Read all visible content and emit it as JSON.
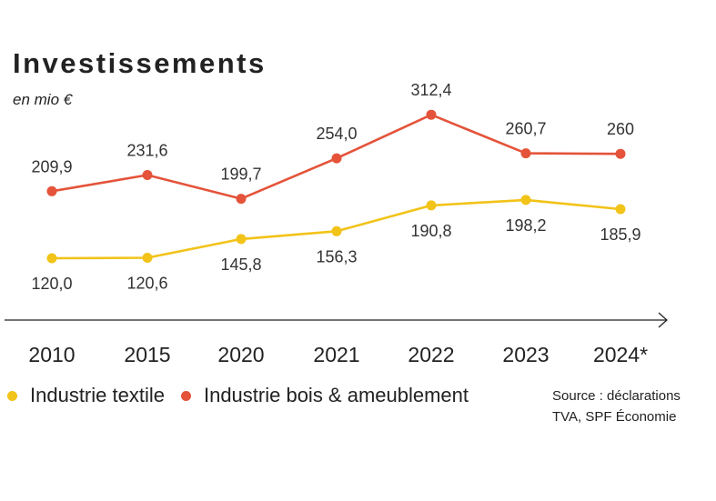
{
  "title": "Investissements",
  "subtitle": "en mio €",
  "legend": {
    "textile": "Industrie textile",
    "bois": "Industrie bois & ameublement"
  },
  "source": {
    "line1": "Source : déclarations",
    "line2": "TVA, SPF Économie"
  },
  "colors": {
    "textile": "#f2c318",
    "bois": "#e4533a",
    "axis": "#222222"
  },
  "chart_data": {
    "type": "line",
    "categories": [
      "2010",
      "2015",
      "2020",
      "2021",
      "2022",
      "2023",
      "2024*"
    ],
    "series": [
      {
        "name": "Industrie bois & ameublement",
        "key": "bois",
        "values": [
          209.9,
          231.6,
          199.7,
          254.0,
          312.4,
          260.7,
          260
        ],
        "labels": [
          "209,9",
          "231,6",
          "199,7",
          "254,0",
          "312,4",
          "260,7",
          "260"
        ],
        "label_position": "above"
      },
      {
        "name": "Industrie textile",
        "key": "textile",
        "values": [
          120.0,
          120.6,
          145.8,
          156.3,
          190.8,
          198.2,
          185.9
        ],
        "labels": [
          "120,0",
          "120,6",
          "145,8",
          "156,3",
          "190,8",
          "198,2",
          "185,9"
        ],
        "label_position": "below"
      }
    ],
    "grid": false,
    "legend_position": "bottom-left"
  }
}
